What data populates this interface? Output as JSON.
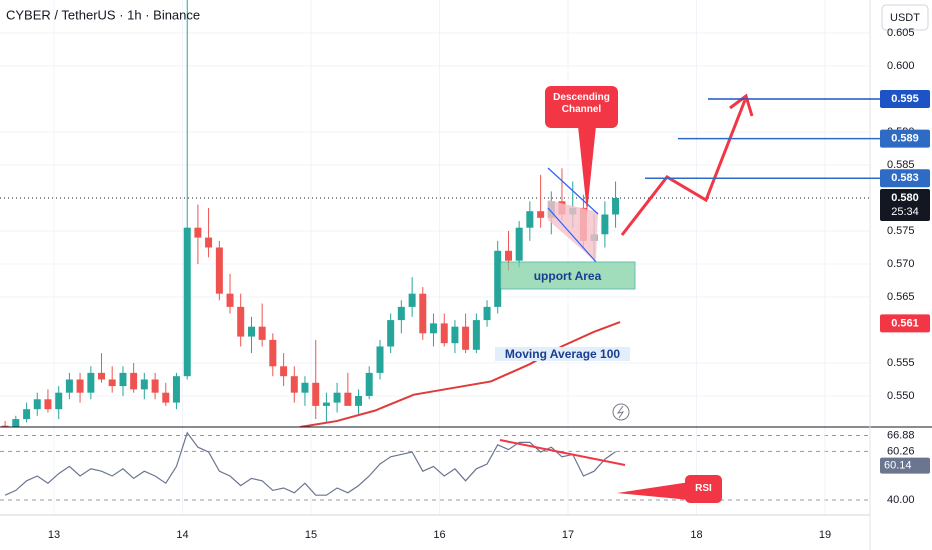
{
  "chart_data": [
    {
      "type": "candlestick",
      "title": "CYBER / TetherUS · 1h · Binance",
      "unit": "USDT",
      "xlim": [
        12.58,
        19.35
      ],
      "ylim": [
        0.5453,
        0.61
      ],
      "yticks": [
        {
          "value": 0.605,
          "label": "0.605"
        },
        {
          "value": 0.6,
          "label": "0.600"
        },
        {
          "value": 0.59,
          "label": "0.590"
        },
        {
          "value": 0.585,
          "label": "0.585"
        },
        {
          "value": 0.575,
          "label": "0.575"
        },
        {
          "value": 0.57,
          "label": "0.570"
        },
        {
          "value": 0.565,
          "label": "0.565"
        },
        {
          "value": 0.555,
          "label": "0.555"
        },
        {
          "value": 0.55,
          "label": "0.550"
        }
      ],
      "grid": true,
      "up_color": "#26a69a",
      "down_color": "#ef5350",
      "x": [
        12.62,
        12.703,
        12.787,
        12.87,
        12.953,
        13.037,
        13.12,
        13.203,
        13.287,
        13.37,
        13.453,
        13.537,
        13.62,
        13.703,
        13.787,
        13.87,
        13.953,
        14.037,
        14.12,
        14.203,
        14.287,
        14.37,
        14.453,
        14.537,
        14.62,
        14.703,
        14.787,
        14.87,
        14.953,
        15.037,
        15.12,
        15.203,
        15.287,
        15.37,
        15.453,
        15.537,
        15.62,
        15.703,
        15.787,
        15.87,
        15.953,
        16.037,
        16.12,
        16.203,
        16.287,
        16.37,
        16.453,
        16.537,
        16.62,
        16.703,
        16.787,
        16.87,
        16.953,
        17.037,
        17.12,
        17.203,
        17.287,
        17.37
      ],
      "open": [
        0.5455,
        0.545,
        0.5465,
        0.548,
        0.5495,
        0.548,
        0.5505,
        0.5525,
        0.5505,
        0.5535,
        0.5525,
        0.5515,
        0.5535,
        0.551,
        0.5525,
        0.5505,
        0.549,
        0.553,
        0.5755,
        0.574,
        0.5725,
        0.5655,
        0.5635,
        0.559,
        0.5605,
        0.5585,
        0.5545,
        0.553,
        0.5505,
        0.552,
        0.5485,
        0.549,
        0.5505,
        0.5485,
        0.55,
        0.5535,
        0.5575,
        0.5615,
        0.5635,
        0.5655,
        0.5595,
        0.561,
        0.558,
        0.5605,
        0.557,
        0.5615,
        0.5635,
        0.572,
        0.5705,
        0.5755,
        0.578,
        0.577,
        0.5795,
        0.5775,
        0.5785,
        0.5735,
        0.5745,
        0.5775
      ],
      "high": [
        0.5462,
        0.547,
        0.549,
        0.5505,
        0.551,
        0.5515,
        0.5535,
        0.5535,
        0.5545,
        0.5565,
        0.5545,
        0.5545,
        0.555,
        0.5535,
        0.5535,
        0.552,
        0.5535,
        0.612,
        0.579,
        0.5785,
        0.5735,
        0.5685,
        0.5655,
        0.562,
        0.564,
        0.5595,
        0.5565,
        0.5545,
        0.553,
        0.5585,
        0.5505,
        0.552,
        0.5535,
        0.551,
        0.5545,
        0.5585,
        0.5625,
        0.5645,
        0.568,
        0.5665,
        0.5625,
        0.5625,
        0.5615,
        0.5625,
        0.5625,
        0.5645,
        0.5735,
        0.575,
        0.5765,
        0.5795,
        0.5835,
        0.581,
        0.5845,
        0.5825,
        0.5805,
        0.5775,
        0.5795,
        0.5825
      ],
      "low": [
        0.544,
        0.544,
        0.546,
        0.547,
        0.5475,
        0.5465,
        0.5495,
        0.549,
        0.5495,
        0.552,
        0.5505,
        0.55,
        0.5505,
        0.5495,
        0.5495,
        0.5485,
        0.548,
        0.5525,
        0.57,
        0.571,
        0.5645,
        0.5625,
        0.5575,
        0.5565,
        0.5575,
        0.553,
        0.5515,
        0.549,
        0.5485,
        0.5465,
        0.546,
        0.5475,
        0.549,
        0.547,
        0.5495,
        0.5525,
        0.5565,
        0.5595,
        0.562,
        0.5585,
        0.5575,
        0.5575,
        0.5565,
        0.5565,
        0.5565,
        0.5605,
        0.5625,
        0.569,
        0.5695,
        0.5735,
        0.5755,
        0.5745,
        0.5765,
        0.5755,
        0.5725,
        0.5705,
        0.5725,
        0.5755
      ],
      "close": [
        0.545,
        0.5465,
        0.548,
        0.5495,
        0.548,
        0.5505,
        0.5525,
        0.5505,
        0.5535,
        0.5525,
        0.5515,
        0.5535,
        0.551,
        0.5525,
        0.5505,
        0.549,
        0.553,
        0.5755,
        0.574,
        0.5725,
        0.5655,
        0.5635,
        0.559,
        0.5605,
        0.5585,
        0.5545,
        0.553,
        0.5505,
        0.552,
        0.5485,
        0.549,
        0.5505,
        0.5485,
        0.55,
        0.5535,
        0.5575,
        0.5615,
        0.5635,
        0.5655,
        0.5595,
        0.561,
        0.558,
        0.5605,
        0.557,
        0.5615,
        0.5635,
        0.572,
        0.5705,
        0.5755,
        0.578,
        0.577,
        0.5795,
        0.5775,
        0.5785,
        0.5735,
        0.5745,
        0.5775,
        0.58
      ],
      "ma": {
        "color": "#e03a3a",
        "x": [
          14.915,
          15.2,
          15.5,
          15.8,
          16.1,
          16.4,
          16.7,
          16.95,
          17.2,
          17.405
        ],
        "values": [
          0.5453,
          0.5462,
          0.5478,
          0.5502,
          0.5512,
          0.5522,
          0.5548,
          0.5575,
          0.5597,
          0.5612
        ]
      },
      "price_tags": [
        {
          "value": 0.595,
          "label": "0.595",
          "color": "#1e53c5"
        },
        {
          "value": 0.589,
          "label": "0.589",
          "color": "#2e6bc4"
        },
        {
          "value": 0.583,
          "label": "0.583",
          "color": "#2e6bc4"
        },
        {
          "value": 0.58,
          "label": "0.580",
          "color": "#131722",
          "countdown": "25:34"
        },
        {
          "value": 0.561,
          "label": "0.561",
          "color": "#f23645"
        }
      ],
      "annotations": [
        "Descending Channel",
        "upport Area",
        "Moving Average 100"
      ]
    },
    {
      "type": "line",
      "xlim": [
        12.58,
        19.35
      ],
      "xticks": [
        13,
        14,
        15,
        16,
        17,
        18,
        19
      ],
      "ylim": [
        33.75,
        70.42
      ],
      "yticks": [
        66.88,
        60.26,
        {
          "value": 40,
          "label": "40.00"
        }
      ],
      "series": [
        {
          "name": "RSI",
          "color": "#6a7590",
          "values": [
            42,
            44,
            48,
            50,
            47,
            51,
            54,
            50,
            53,
            52,
            50,
            53,
            49,
            52,
            50,
            47,
            54,
            68,
            62,
            60,
            52,
            50,
            46,
            49,
            48,
            44,
            45,
            43,
            47,
            42,
            42,
            45,
            43,
            46,
            50,
            55,
            58,
            59,
            60,
            52,
            54,
            50,
            53,
            48,
            53,
            55,
            63,
            61,
            64,
            64,
            60,
            62,
            58,
            59,
            50,
            52,
            57,
            60.14
          ],
          "value_tag": 60.14
        }
      ]
    }
  ]
}
